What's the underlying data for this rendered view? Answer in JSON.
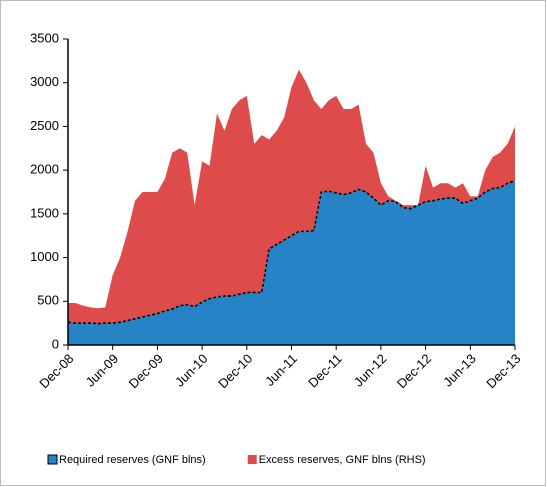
{
  "chart_data": {
    "type": "stacked-area",
    "categories": [
      "Dec-08",
      null,
      null,
      null,
      null,
      null,
      "Jun-09",
      null,
      null,
      null,
      null,
      null,
      "Dec-09",
      null,
      null,
      null,
      null,
      null,
      "Jun-10",
      null,
      null,
      null,
      null,
      null,
      "Dec-10",
      null,
      null,
      null,
      null,
      null,
      "Jun-11",
      null,
      null,
      null,
      null,
      null,
      "Dec-11",
      null,
      null,
      null,
      null,
      null,
      "Jun-12",
      null,
      null,
      null,
      null,
      null,
      "Dec-12",
      null,
      null,
      null,
      null,
      null,
      "Jun-13",
      null,
      null,
      null,
      null,
      null,
      "Dec-13"
    ],
    "series": [
      {
        "name": "Required reserves (GNF blns)",
        "color": "#2583c6",
        "values": [
          260,
          250,
          250,
          250,
          245,
          250,
          250,
          260,
          280,
          300,
          320,
          340,
          360,
          390,
          410,
          450,
          460,
          440,
          490,
          530,
          550,
          560,
          560,
          580,
          600,
          600,
          600,
          1100,
          1150,
          1200,
          1250,
          1300,
          1300,
          1310,
          1750,
          1760,
          1740,
          1720,
          1740,
          1780,
          1750,
          1680,
          1600,
          1650,
          1640,
          1570,
          1560,
          1600,
          1640,
          1650,
          1670,
          1680,
          1680,
          1620,
          1650,
          1680,
          1750,
          1790,
          1800,
          1850,
          1880
        ]
      },
      {
        "name": "Excess reserves, GNF blns (RHS)",
        "color": "#dd4b4b",
        "values": [
          220,
          230,
          200,
          180,
          175,
          180,
          550,
          740,
          1020,
          1350,
          1430,
          1410,
          1390,
          1510,
          1790,
          1800,
          1740,
          1160,
          1610,
          1520,
          2100,
          1890,
          2140,
          2220,
          2250,
          1700,
          1800,
          1250,
          1300,
          1400,
          1700,
          1850,
          1700,
          1490,
          950,
          1040,
          1110,
          980,
          960,
          970,
          550,
          520,
          250,
          50,
          10,
          30,
          40,
          0,
          410,
          150,
          180,
          170,
          120,
          230,
          50,
          20,
          250,
          360,
          400,
          450,
          620
        ]
      }
    ],
    "ylim": [
      0,
      3500
    ],
    "yticks": [
      0,
      500,
      1000,
      1500,
      2000,
      2500,
      3000,
      3500
    ]
  }
}
